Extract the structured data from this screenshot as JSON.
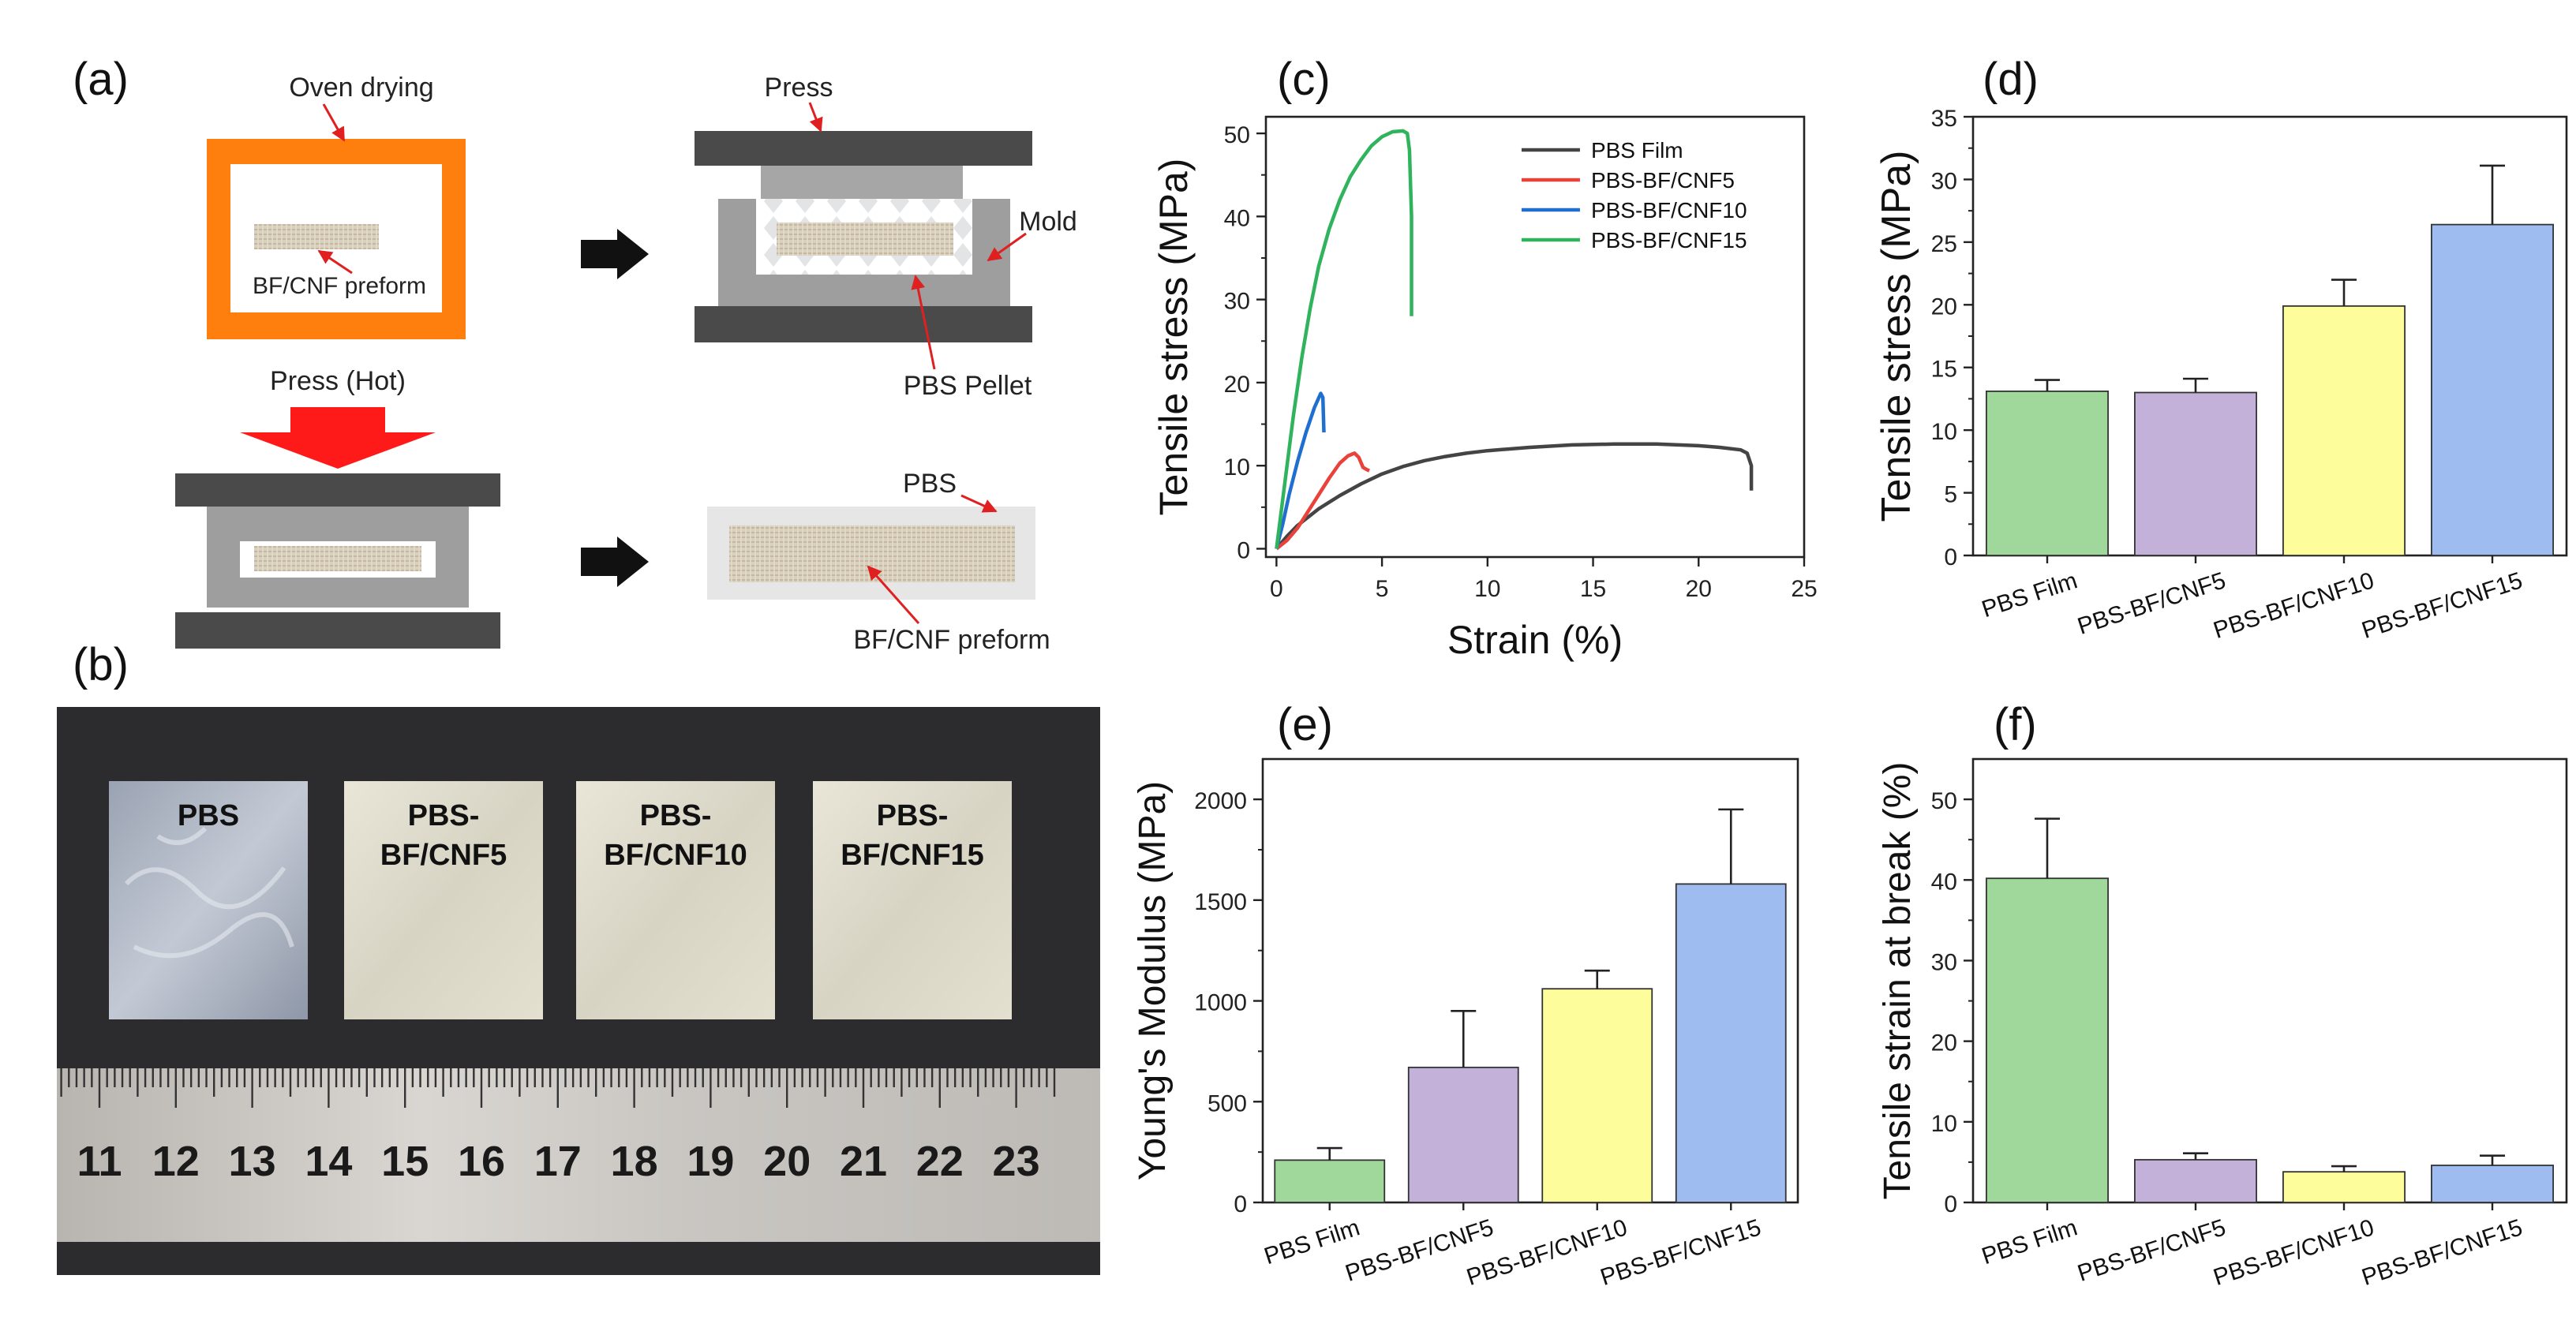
{
  "panel_labels": {
    "a": "(a)",
    "b": "(b)",
    "c": "(c)",
    "d": "(d)",
    "e": "(e)",
    "f": "(f)"
  },
  "schematic": {
    "oven_drying": "Oven drying",
    "bf_cnf_preform": "BF/CNF preform",
    "press_hot": "Press (Hot)",
    "press": "Press",
    "mold": "Mold",
    "pbs_pellet": "PBS Pellet",
    "pbs": "PBS",
    "bf_cnf_preform_2": "BF/CNF preform",
    "colors": {
      "oven": "#ff7f0e",
      "press": "#4a4a4a",
      "mold": "#9e9e9e",
      "arrow_red": "#ff1a1a",
      "preform": "#d9cfbd"
    }
  },
  "photo": {
    "samples": [
      {
        "line1": "PBS",
        "line2": ""
      },
      {
        "line1": "PBS-",
        "line2": "BF/CNF5"
      },
      {
        "line1": "PBS-",
        "line2": "BF/CNF10"
      },
      {
        "line1": "PBS-",
        "line2": "BF/CNF15"
      }
    ],
    "ruler_numbers": [
      "11",
      "12",
      "13",
      "14",
      "15",
      "16",
      "17",
      "18",
      "19",
      "20",
      "21",
      "22",
      "23"
    ]
  },
  "chart_data": [
    {
      "id": "c",
      "type": "line",
      "title": "",
      "xlabel": "Strain (%)",
      "ylabel": "Tensile stress (MPa)",
      "xlim": [
        -0.5,
        25
      ],
      "ylim": [
        -1,
        52
      ],
      "xticks": [
        0,
        5,
        10,
        15,
        20,
        25
      ],
      "yticks": [
        0,
        10,
        20,
        30,
        40,
        50
      ],
      "legend_position": "top-right",
      "series": [
        {
          "name": "PBS Film",
          "color": "#444444",
          "x": [
            0,
            0.5,
            1,
            2,
            3,
            4,
            5,
            6,
            7,
            8,
            9,
            10,
            12,
            14,
            16,
            18,
            20,
            21,
            22,
            22.3,
            22.5,
            22.5
          ],
          "y": [
            0,
            1.5,
            2.8,
            4.8,
            6.4,
            7.8,
            9,
            9.9,
            10.6,
            11.1,
            11.5,
            11.8,
            12.2,
            12.5,
            12.6,
            12.6,
            12.4,
            12.2,
            11.9,
            11.5,
            10,
            7
          ]
        },
        {
          "name": "PBS-BF/CNF5",
          "color": "#e8423a",
          "x": [
            0,
            0.5,
            1,
            1.5,
            2,
            2.5,
            3,
            3.4,
            3.7,
            3.9,
            4.1,
            4.3,
            4.4
          ],
          "y": [
            0,
            1,
            2.5,
            4.5,
            6.5,
            8.5,
            10.3,
            11.2,
            11.5,
            11,
            9.8,
            9.5,
            9.4
          ]
        },
        {
          "name": "PBS-BF/CNF10",
          "color": "#1f6fd1",
          "x": [
            0,
            0.3,
            0.6,
            1,
            1.4,
            1.8,
            2.1,
            2.2,
            2.25
          ],
          "y": [
            0,
            3,
            6.5,
            10.5,
            14,
            17,
            18.7,
            18.2,
            14
          ]
        },
        {
          "name": "PBS-BF/CNF15",
          "color": "#2fb35c",
          "x": [
            0,
            0.4,
            0.8,
            1.2,
            1.6,
            2,
            2.5,
            3,
            3.5,
            4,
            4.5,
            5,
            5.5,
            6,
            6.2,
            6.3,
            6.4,
            6.4
          ],
          "y": [
            0,
            8,
            16,
            23,
            29,
            34,
            38.5,
            42,
            44.8,
            46.8,
            48.5,
            49.6,
            50.2,
            50.3,
            50,
            48,
            40,
            28
          ]
        }
      ]
    },
    {
      "id": "d",
      "type": "bar",
      "xlabel": "",
      "ylabel": "Tensile stress (MPa)",
      "ylim": [
        0,
        35
      ],
      "yticks": [
        0,
        5,
        10,
        15,
        20,
        25,
        30,
        35
      ],
      "categories": [
        "PBS Film",
        "PBS-BF/CNF5",
        "PBS-BF/CNF10",
        "PBS-BF/CNF15"
      ],
      "values": [
        13.1,
        13.0,
        19.9,
        26.4
      ],
      "errors": [
        0.9,
        1.1,
        2.1,
        4.7
      ],
      "colors": [
        "#9fd89a",
        "#c3b1d9",
        "#fdfd9c",
        "#9fbcf0"
      ]
    },
    {
      "id": "e",
      "type": "bar",
      "xlabel": "",
      "ylabel": "Young's Modulus (MPa)",
      "ylim": [
        0,
        2200
      ],
      "yticks": [
        0,
        500,
        1000,
        1500,
        2000
      ],
      "categories": [
        "PBS Film",
        "PBS-BF/CNF5",
        "PBS-BF/CNF10",
        "PBS-BF/CNF15"
      ],
      "values": [
        210,
        670,
        1060,
        1580
      ],
      "errors": [
        60,
        280,
        90,
        370
      ],
      "colors": [
        "#9fd89a",
        "#c3b1d9",
        "#fdfd9c",
        "#9fbcf0"
      ]
    },
    {
      "id": "f",
      "type": "bar",
      "xlabel": "",
      "ylabel": "Tensile strain at break (%)",
      "ylim": [
        0,
        55
      ],
      "yticks": [
        0,
        10,
        20,
        30,
        40,
        50
      ],
      "categories": [
        "PBS Film",
        "PBS-BF/CNF5",
        "PBS-BF/CNF10",
        "PBS-BF/CNF15"
      ],
      "values": [
        40.2,
        5.3,
        3.8,
        4.6
      ],
      "errors": [
        7.4,
        0.8,
        0.7,
        1.2
      ],
      "colors": [
        "#9fd89a",
        "#c3b1d9",
        "#fdfd9c",
        "#9fbcf0"
      ]
    }
  ]
}
